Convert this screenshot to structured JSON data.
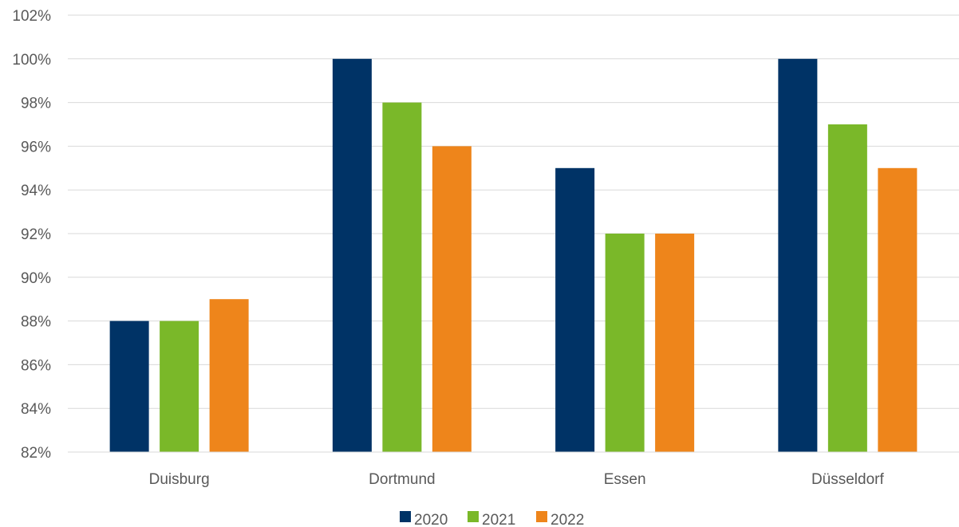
{
  "chart_data": {
    "type": "bar",
    "categories": [
      "Duisburg",
      "Dortmund",
      "Essen",
      "Düsseldorf"
    ],
    "series": [
      {
        "name": "2020",
        "values": [
          88,
          100,
          95,
          100
        ],
        "color": "#003366"
      },
      {
        "name": "2021",
        "values": [
          88,
          98,
          92,
          97
        ],
        "color": "#7ab829"
      },
      {
        "name": "2022",
        "values": [
          89,
          96,
          92,
          95
        ],
        "color": "#ee851b"
      }
    ],
    "ylim": [
      82,
      102
    ],
    "ytick_step": 2,
    "ytick_labels": [
      "82%",
      "84%",
      "86%",
      "88%",
      "90%",
      "92%",
      "94%",
      "96%",
      "98%",
      "100%",
      "102%"
    ],
    "grid": true,
    "legend_position": "bottom",
    "title": "",
    "xlabel": "",
    "ylabel": ""
  }
}
